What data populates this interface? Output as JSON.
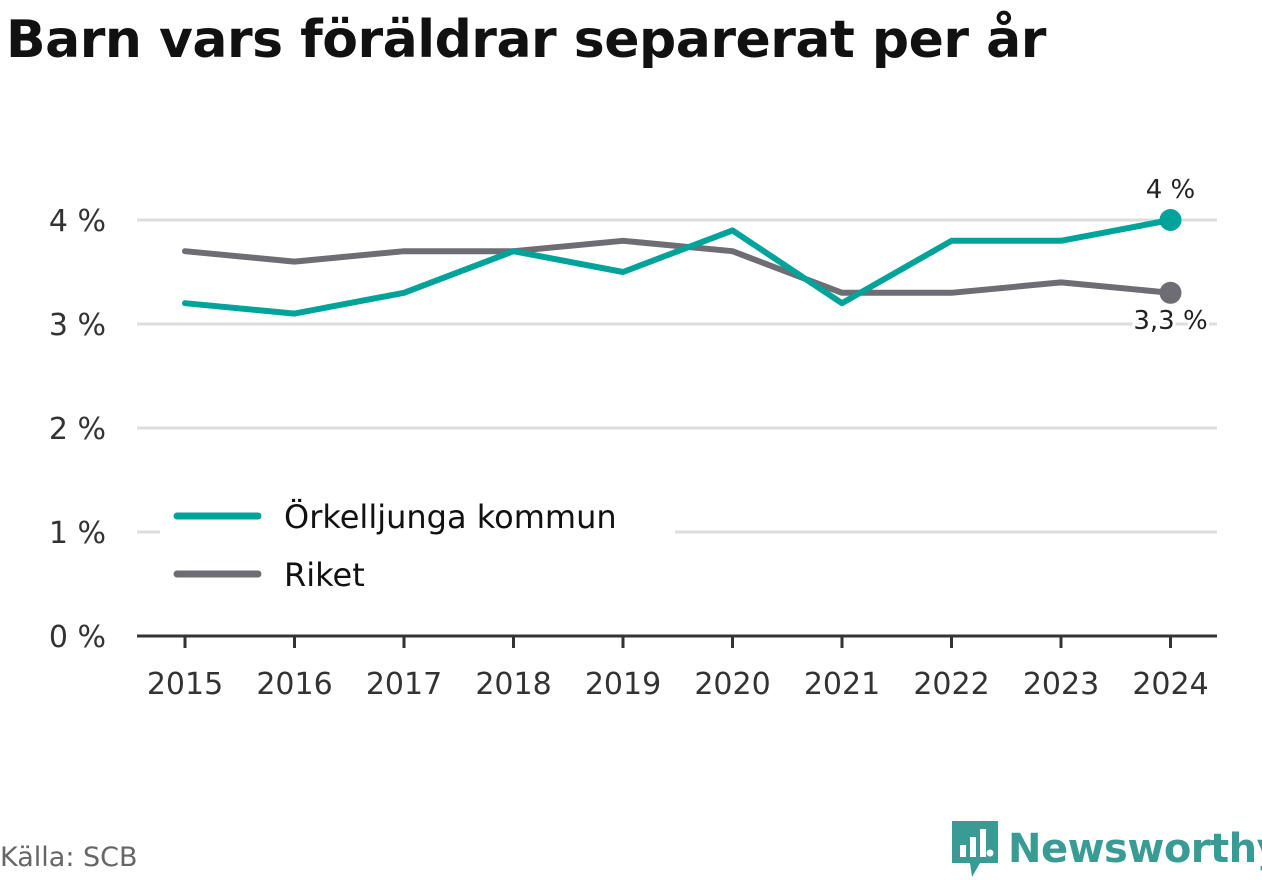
{
  "title": "Barn vars föräldrar separerat per år",
  "source": "Källa: SCB",
  "brand": {
    "name": "Newsworthy",
    "logo_icon": "newsworthy-logo-icon",
    "color": "#3a9b94"
  },
  "chart_data": {
    "type": "line",
    "categories": [
      "2015",
      "2016",
      "2017",
      "2018",
      "2019",
      "2020",
      "2021",
      "2022",
      "2023",
      "2024"
    ],
    "series": [
      {
        "name": "Örkelljunga kommun",
        "color": "#00a39a",
        "values": [
          3.2,
          3.1,
          3.3,
          3.7,
          3.5,
          3.9,
          3.2,
          3.8,
          3.8,
          4.0
        ],
        "end_label": "4 %"
      },
      {
        "name": "Riket",
        "color": "#6e6d73",
        "values": [
          3.7,
          3.6,
          3.7,
          3.7,
          3.8,
          3.7,
          3.3,
          3.3,
          3.4,
          3.3
        ],
        "end_label": "3,3 %"
      }
    ],
    "yticks": [
      {
        "value": 0,
        "label": "0 %"
      },
      {
        "value": 1,
        "label": "1 %"
      },
      {
        "value": 2,
        "label": "2 %"
      },
      {
        "value": 3,
        "label": "3 %"
      },
      {
        "value": 4,
        "label": "4 %"
      }
    ],
    "ylim": [
      0,
      4
    ],
    "grid": true,
    "legend_position": "bottom-left"
  }
}
